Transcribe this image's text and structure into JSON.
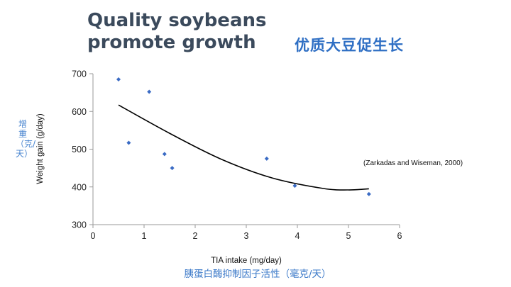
{
  "chart_data": {
    "type": "scatter",
    "title": "Quality soybeans\npromote growth",
    "title_cn": "优质大豆促生长",
    "xlabel": "TIA intake (mg/day)",
    "xlabel_cn": "胰蛋白酶抑制因子活性（毫克/天）",
    "ylabel": "Weight gain (g/day)",
    "ylabel_cn": "增重（克/天）",
    "annotation": "(Zarkadas and Wiseman, 2000)",
    "xlim": [
      0,
      6
    ],
    "ylim": [
      300,
      700
    ],
    "x_ticks": [
      0,
      1,
      2,
      3,
      4,
      5,
      6
    ],
    "y_ticks": [
      300,
      400,
      500,
      600,
      700
    ],
    "grid": false,
    "point_color": "#3a6bc4",
    "trend_color": "#000000",
    "series": [
      {
        "points": [
          {
            "x": 0.5,
            "y": 685
          },
          {
            "x": 0.7,
            "y": 517
          },
          {
            "x": 1.1,
            "y": 652
          },
          {
            "x": 1.4,
            "y": 487
          },
          {
            "x": 1.55,
            "y": 450
          },
          {
            "x": 3.4,
            "y": 475
          },
          {
            "x": 3.95,
            "y": 403
          },
          {
            "x": 5.4,
            "y": 381
          }
        ]
      }
    ],
    "trendline": {
      "type": "polynomial",
      "x_range": [
        0.5,
        5.4
      ],
      "points": [
        {
          "x": 0.5,
          "y": 617
        },
        {
          "x": 1.5,
          "y": 542
        },
        {
          "x": 2.5,
          "y": 474
        },
        {
          "x": 3.5,
          "y": 424
        },
        {
          "x": 4.5,
          "y": 396
        },
        {
          "x": 5.0,
          "y": 392
        },
        {
          "x": 5.4,
          "y": 395
        }
      ]
    }
  }
}
